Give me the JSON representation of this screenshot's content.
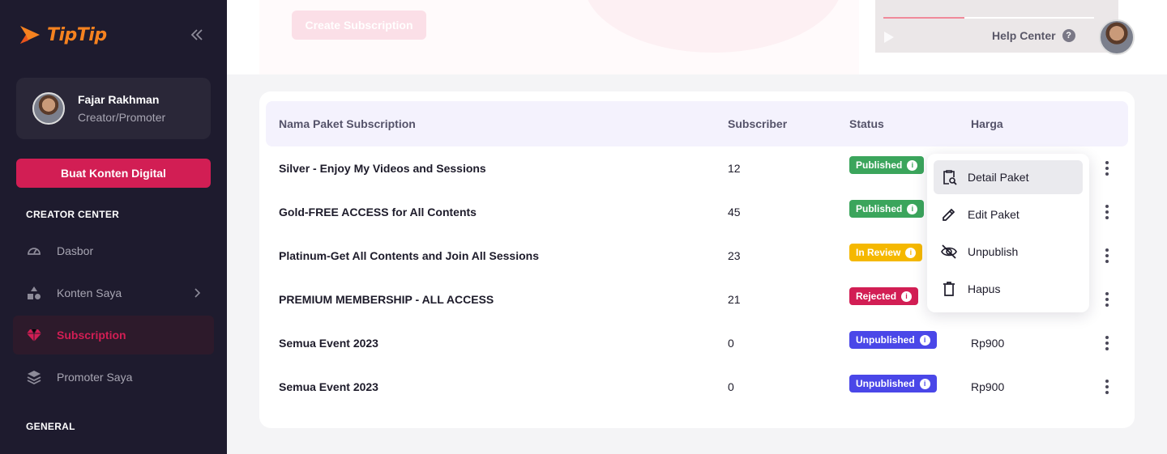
{
  "brand": {
    "name": "TipTip",
    "color": "#f5821f"
  },
  "profile": {
    "name": "Fajar Rakhman",
    "role": "Creator/Promoter"
  },
  "sidebar": {
    "cta_label": "Buat Konten Digital",
    "section_creator": "CREATOR CENTER",
    "section_general": "GENERAL",
    "items": [
      {
        "label": "Dasbor",
        "icon": "dashboard-icon"
      },
      {
        "label": "Konten Saya",
        "icon": "shapes-icon"
      },
      {
        "label": "Subscription",
        "icon": "diamond-icon",
        "active": true
      },
      {
        "label": "Promoter Saya",
        "icon": "layers-icon"
      }
    ]
  },
  "header": {
    "create_button": "Create Subscription",
    "help_label": "Help Center"
  },
  "table": {
    "columns": [
      "Nama Paket Subscription",
      "Subscriber",
      "Status",
      "Harga"
    ],
    "rows": [
      {
        "name": "Silver - Enjoy My Videos and Sessions",
        "subscriber": "12",
        "status": "Published",
        "price": ""
      },
      {
        "name": "Gold-FREE ACCESS for All Contents",
        "subscriber": "45",
        "status": "Published",
        "price": ""
      },
      {
        "name": "Platinum-Get All Contents and Join All Sessions",
        "subscriber": "23",
        "status": "In Review",
        "price": ""
      },
      {
        "name": "PREMIUM MEMBERSHIP - ALL ACCESS",
        "subscriber": "21",
        "status": "Rejected",
        "price": ""
      },
      {
        "name": "Semua Event 2023",
        "subscriber": "0",
        "status": "Unpublished",
        "price": "Rp900"
      },
      {
        "name": "Semua Event 2023",
        "subscriber": "0",
        "status": "Unpublished",
        "price": "Rp900"
      }
    ]
  },
  "status_colors": {
    "Published": "#3ba55c",
    "In Review": "#f5b800",
    "Rejected": "#d21e54",
    "Unpublished": "#4a47e8"
  },
  "menu": {
    "items": [
      {
        "label": "Detail Paket",
        "icon": "clipboard-search-icon"
      },
      {
        "label": "Edit Paket",
        "icon": "pencil-icon"
      },
      {
        "label": "Unpublish",
        "icon": "eye-off-icon"
      },
      {
        "label": "Hapus",
        "icon": "trash-icon"
      }
    ]
  }
}
